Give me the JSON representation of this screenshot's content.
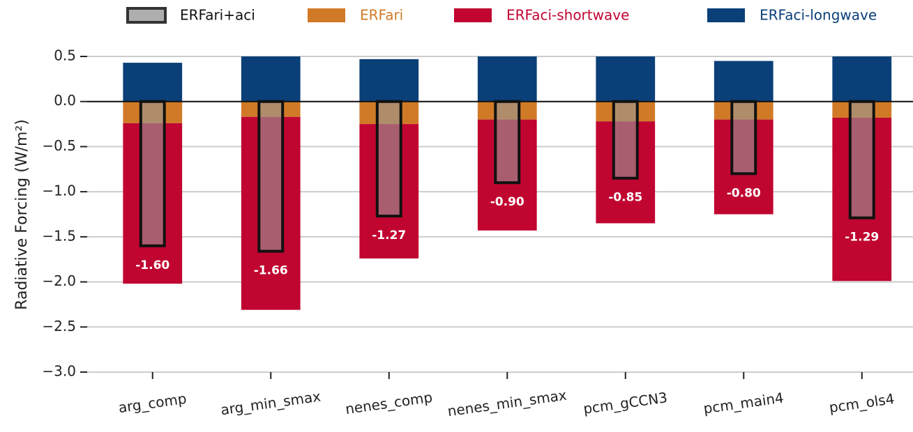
{
  "chart_data": {
    "type": "bar",
    "y_label": "Radiative Forcing (W/m²)",
    "categories": [
      "arg_comp",
      "arg_min_smax",
      "nenes_comp",
      "nenes_min_smax",
      "pcm_gCCN3",
      "pcm_main4",
      "pcm_ols4"
    ],
    "series": [
      {
        "name": "ERFari+aci",
        "color": "#9a9a9a",
        "text_color": "#111111",
        "overlay": true,
        "values": [
          -1.6,
          -1.66,
          -1.27,
          -0.9,
          -0.85,
          -0.8,
          -1.29
        ],
        "value_labels": [
          "-1.60",
          "-1.66",
          "-1.27",
          "-0.90",
          "-0.85",
          "-0.80",
          "-1.29"
        ]
      },
      {
        "name": "ERFari",
        "color": "#d07a27",
        "text_color": "#d07a27",
        "values": [
          -0.24,
          -0.17,
          -0.25,
          -0.2,
          -0.22,
          -0.2,
          -0.18
        ]
      },
      {
        "name": "ERFaci-shortwave",
        "color": "#c00530",
        "text_color": "#c00530",
        "values": [
          -1.78,
          -2.14,
          -1.49,
          -1.23,
          -1.13,
          -1.05,
          -1.81
        ]
      },
      {
        "name": "ERFaci-longwave",
        "color": "#0b3f78",
        "text_color": "#0b3f78",
        "values": [
          0.43,
          0.65,
          0.47,
          0.53,
          0.5,
          0.45,
          0.7
        ]
      }
    ],
    "ylim": [
      -3.0,
      0.5
    ],
    "yticks": [
      {
        "value": -3.0,
        "label": "−3.0"
      },
      {
        "value": -2.5,
        "label": "−2.5"
      },
      {
        "value": -2.0,
        "label": "−2.0"
      },
      {
        "value": -1.5,
        "label": "−1.5"
      },
      {
        "value": -1.0,
        "label": "−1.0"
      },
      {
        "value": -0.5,
        "label": "−0.5"
      },
      {
        "value": 0.0,
        "label": "0.0"
      },
      {
        "value": 0.5,
        "label": "0.5"
      }
    ],
    "grid": true,
    "legend": "top"
  }
}
